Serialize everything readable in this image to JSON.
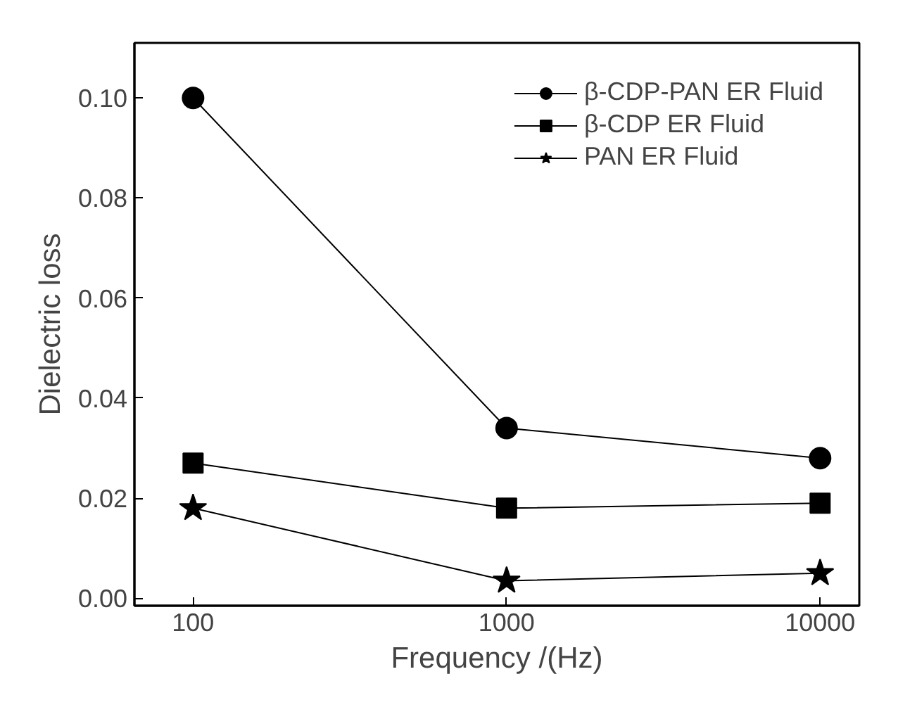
{
  "chart_data": {
    "type": "line",
    "xlabel": "Frequency /(Hz)",
    "ylabel": "Dielectric loss",
    "log": "x",
    "xlim": [
      65,
      13335
    ],
    "xticks": [
      100,
      1000,
      10000
    ],
    "ylim": [
      -0.0015,
      0.111
    ],
    "yticks": [
      {
        "value": 0,
        "label": "0.00"
      },
      {
        "value": 0.02,
        "label": "0.02"
      },
      {
        "value": 0.04,
        "label": "0.04"
      },
      {
        "value": 0.06,
        "label": "0.06"
      },
      {
        "value": 0.08,
        "label": "0.08"
      },
      {
        "value": 0.1,
        "label": "0.10"
      }
    ],
    "x": [
      100,
      1000,
      10000
    ],
    "grid": false,
    "legend": "top right",
    "line_style": "solid",
    "series": [
      {
        "name": "β-CDP-PAN ER Fluid",
        "color": "#000000",
        "marker": "circle",
        "values": [
          0.1,
          0.034,
          0.028
        ]
      },
      {
        "name": "β-CDP ER Fluid",
        "color": "#000000",
        "marker": "square",
        "values": [
          0.027,
          0.018,
          0.019
        ]
      },
      {
        "name": "PAN ER Fluid",
        "color": "#000000",
        "marker": "star",
        "values": [
          0.018,
          0.0035,
          0.005
        ]
      }
    ]
  }
}
